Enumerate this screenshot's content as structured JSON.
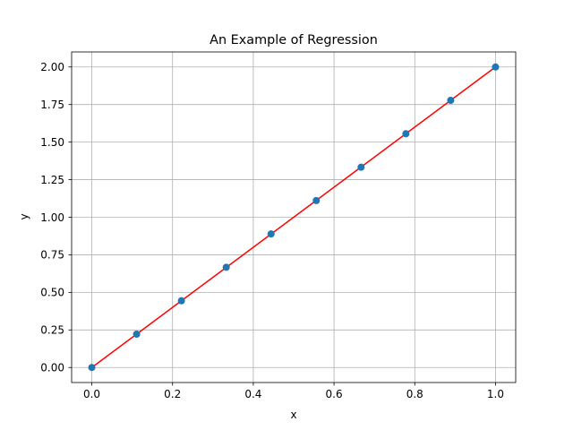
{
  "chart_data": {
    "type": "scatter",
    "title": "An Example of Regression",
    "xlabel": "x",
    "ylabel": "y",
    "xlim": [
      -0.05,
      1.05
    ],
    "ylim": [
      -0.1,
      2.1
    ],
    "grid": true,
    "x_ticks": [
      0.0,
      0.2,
      0.4,
      0.6,
      0.8,
      1.0
    ],
    "x_tick_labels": [
      "0.0",
      "0.2",
      "0.4",
      "0.6",
      "0.8",
      "1.0"
    ],
    "y_ticks": [
      0.0,
      0.25,
      0.5,
      0.75,
      1.0,
      1.25,
      1.5,
      1.75,
      2.0
    ],
    "y_tick_labels": [
      "0.00",
      "0.25",
      "0.50",
      "0.75",
      "1.00",
      "1.25",
      "1.50",
      "1.75",
      "2.00"
    ],
    "series": [
      {
        "type": "scatter",
        "color": "#1f77b4",
        "x": [
          0.0,
          0.111,
          0.222,
          0.333,
          0.444,
          0.556,
          0.667,
          0.778,
          0.889,
          1.0
        ],
        "y": [
          0.0,
          0.222,
          0.444,
          0.667,
          0.889,
          1.111,
          1.333,
          1.556,
          1.778,
          2.0
        ]
      },
      {
        "type": "line",
        "color": "#ff0000",
        "x": [
          0.0,
          1.0
        ],
        "y": [
          0.0,
          2.0
        ]
      }
    ]
  }
}
